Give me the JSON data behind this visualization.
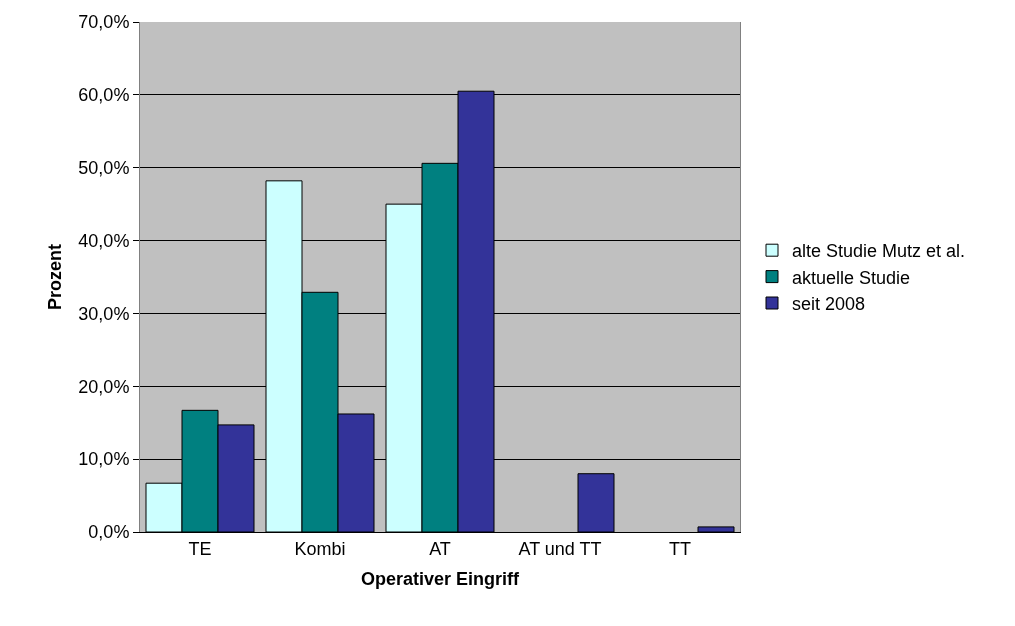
{
  "chart_data": {
    "type": "bar",
    "xlabel": "Operativer Eingriff",
    "ylabel": "Prozent",
    "categories": [
      "TE",
      "Kombi",
      "AT",
      "AT und TT",
      "TT"
    ],
    "series": [
      {
        "name": "alte Studie Mutz et al.",
        "color": "#ccffff",
        "values": [
          6.7,
          48.2,
          45.0,
          null,
          null
        ]
      },
      {
        "name": "aktuelle Studie",
        "color": "#008080",
        "values": [
          16.7,
          32.9,
          50.6,
          null,
          null
        ]
      },
      {
        "name": "seit 2008",
        "color": "#333399",
        "values": [
          14.7,
          16.2,
          60.5,
          8.0,
          0.7
        ]
      }
    ],
    "ylim": [
      0,
      70
    ],
    "yticks": [
      {
        "value": 0,
        "label": "0,0%"
      },
      {
        "value": 10,
        "label": "10,0%"
      },
      {
        "value": 20,
        "label": "20,0%"
      },
      {
        "value": 30,
        "label": "30,0%"
      },
      {
        "value": 40,
        "label": "40,0%"
      },
      {
        "value": 50,
        "label": "50,0%"
      },
      {
        "value": 60,
        "label": "60,0%"
      },
      {
        "value": 70,
        "label": "70,0%"
      }
    ],
    "grid": "y",
    "legend": "right"
  }
}
